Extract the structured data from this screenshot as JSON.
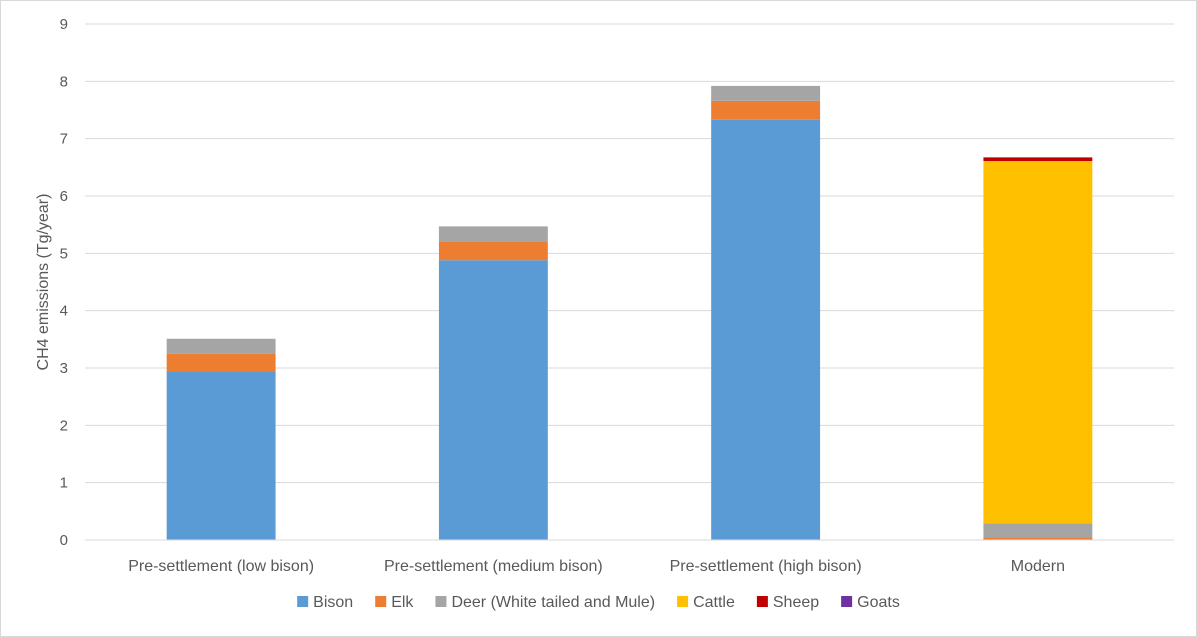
{
  "chart_data": {
    "type": "bar",
    "stacked": true,
    "title": "",
    "xlabel": "",
    "ylabel": "CH4 emissions (Tg/year)",
    "ylim": [
      0,
      9
    ],
    "yticks": [
      0,
      1,
      2,
      3,
      4,
      5,
      6,
      7,
      8,
      9
    ],
    "grid": true,
    "legend_position": "bottom",
    "categories": [
      "Pre-settlement (low bison)",
      "Pre-settlement (medium bison)",
      "Pre-settlement (high bison)",
      "Modern"
    ],
    "series": [
      {
        "name": "Bison",
        "color": "#5b9bd5",
        "values": [
          2.93,
          4.88,
          7.33,
          0.0
        ]
      },
      {
        "name": "Elk",
        "color": "#ed7d31",
        "values": [
          0.32,
          0.33,
          0.33,
          0.05
        ]
      },
      {
        "name": "Deer (White tailed and Mule)",
        "color": "#a5a5a5",
        "values": [
          0.26,
          0.26,
          0.26,
          0.24
        ]
      },
      {
        "name": "Cattle",
        "color": "#ffc000",
        "values": [
          0.0,
          0.0,
          0.0,
          6.32
        ]
      },
      {
        "name": "Sheep",
        "color": "#c00000",
        "values": [
          0.0,
          0.0,
          0.0,
          0.06
        ]
      },
      {
        "name": "Goats",
        "color": "#7030a0",
        "values": [
          0.0,
          0.0,
          0.0,
          0.005
        ]
      }
    ]
  }
}
